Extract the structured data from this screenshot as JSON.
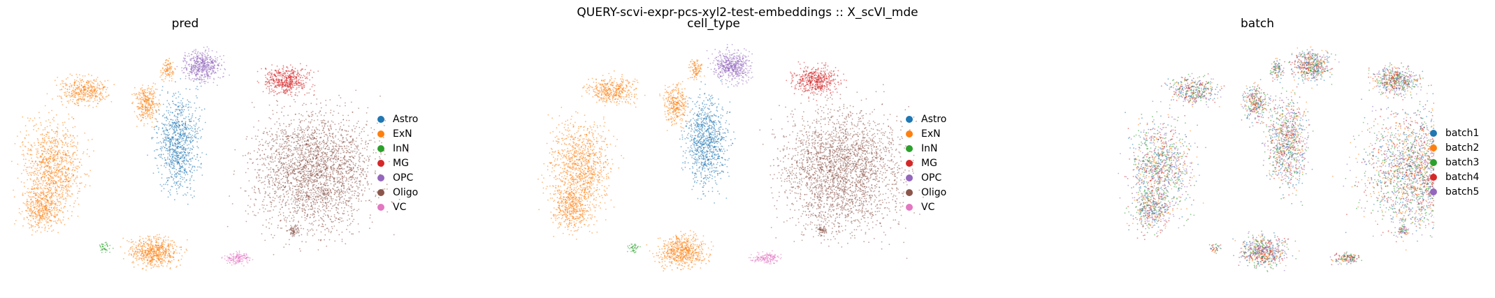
{
  "figure": {
    "suptitle": "QUERY-scvi-expr-pcs-xyl2-test-embeddings :: X_scVI_mde"
  },
  "chart_data": [
    {
      "type": "scatter",
      "title": "pred",
      "legend_position": "right",
      "categories": [
        "Astro",
        "ExN",
        "InN",
        "MG",
        "OPC",
        "Oligo",
        "VC"
      ],
      "colors": [
        "#1f77b4",
        "#ff7f0e",
        "#2ca02c",
        "#d62728",
        "#9467bd",
        "#8c564b",
        "#e377c2"
      ],
      "axes": "off"
    },
    {
      "type": "scatter",
      "title": "cell_type",
      "legend_position": "right",
      "categories": [
        "Astro",
        "ExN",
        "InN",
        "MG",
        "OPC",
        "Oligo",
        "VC"
      ],
      "colors": [
        "#1f77b4",
        "#ff7f0e",
        "#2ca02c",
        "#d62728",
        "#9467bd",
        "#8c564b",
        "#e377c2"
      ],
      "axes": "off"
    },
    {
      "type": "scatter",
      "title": "batch",
      "legend_position": "right",
      "categories": [
        "batch1",
        "batch2",
        "batch3",
        "batch4",
        "batch5"
      ],
      "colors": [
        "#1f77b4",
        "#ff7f0e",
        "#2ca02c",
        "#d62728",
        "#9467bd"
      ],
      "axes": "off"
    }
  ]
}
